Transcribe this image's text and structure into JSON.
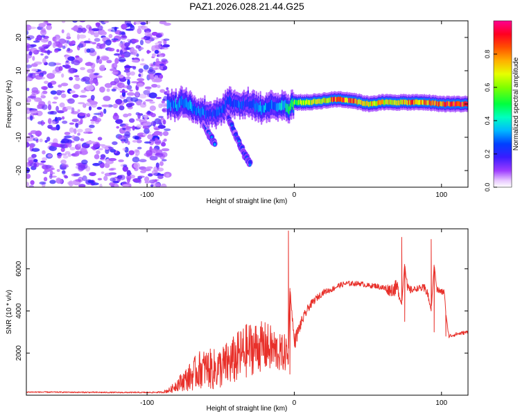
{
  "title": "PAZ1.2026.028.21.44.G25",
  "colors": {
    "snr_line": "#e8302a",
    "axis": "#000000",
    "background": "#ffffff"
  },
  "chart_data": [
    {
      "type": "heatmap",
      "title": "PAZ1.2026.028.21.44.G25",
      "xlabel": "Height of straight line (km)",
      "ylabel": "Frequency (Hz)",
      "xlim": [
        -182,
        118
      ],
      "ylim": [
        -25,
        25
      ],
      "xticks": [
        -100,
        0,
        100
      ],
      "xtick_labels": [
        "-100",
        "0",
        "100"
      ],
      "yticks": [
        -20,
        -10,
        0,
        10,
        20
      ],
      "ytick_labels": [
        "-20",
        "-10",
        "0",
        "10",
        "20"
      ],
      "noise_region_x": [
        -182,
        -86
      ],
      "ridge": {
        "description": "dominant frequency ridge",
        "x": [
          -86,
          -80,
          -74,
          -68,
          -62,
          -56,
          -50,
          -44,
          -38,
          -32,
          -26,
          -20,
          -14,
          -8,
          -4,
          0,
          10,
          20,
          30,
          40,
          50,
          60,
          70,
          80,
          90,
          100,
          110,
          118
        ],
        "y": [
          0.0,
          -0.5,
          1.0,
          -1.5,
          -2.5,
          -3.0,
          -2.0,
          1.0,
          -0.5,
          0.5,
          -1.0,
          -1.5,
          -0.5,
          0.0,
          -1.5,
          0.5,
          0.5,
          1.0,
          1.5,
          1.0,
          0.0,
          0.5,
          0.5,
          0.5,
          0.5,
          0.0,
          0.0,
          0.0
        ],
        "amplitude": [
          0.3,
          0.35,
          0.3,
          0.35,
          0.3,
          0.25,
          0.3,
          0.25,
          0.3,
          0.25,
          0.3,
          0.35,
          0.3,
          0.4,
          0.5,
          0.6,
          0.65,
          0.7,
          0.95,
          0.85,
          0.75,
          0.8,
          0.7,
          0.85,
          0.8,
          0.9,
          0.95,
          0.9
        ]
      },
      "branches": [
        {
          "x": [
            -66,
            -62,
            -58,
            -54
          ],
          "y": [
            -2,
            -5,
            -9,
            -12
          ]
        },
        {
          "x": [
            -46,
            -42,
            -38,
            -34,
            -30
          ],
          "y": [
            -3,
            -7,
            -11,
            -15,
            -18
          ]
        }
      ],
      "colorbar": {
        "label": "Normalized spectral amplitude",
        "range": [
          0,
          1
        ],
        "ticks": [
          0.0,
          0.2,
          0.4,
          0.6,
          0.8
        ],
        "tick_labels": [
          "0.0",
          "0.2",
          "0.4",
          "0.6",
          "0.8"
        ]
      }
    },
    {
      "type": "line",
      "xlabel": "Height of straight line (km)",
      "ylabel": "SNR (10 * v/v)",
      "xlim": [
        -182,
        118
      ],
      "ylim": [
        0,
        7900
      ],
      "xticks": [
        -100,
        0,
        100
      ],
      "xtick_labels": [
        "-100",
        "0",
        "100"
      ],
      "yticks": [
        2000,
        4000,
        6000
      ],
      "ytick_labels": [
        "2000",
        "4000",
        "6000"
      ],
      "series": [
        {
          "name": "SNR",
          "description": "envelope-sampled SNR with jitter",
          "x": [
            -182,
            -150,
            -120,
            -100,
            -90,
            -84,
            -80,
            -75,
            -70,
            -65,
            -60,
            -55,
            -50,
            -45,
            -40,
            -35,
            -30,
            -25,
            -20,
            -15,
            -10,
            -5,
            -4,
            -3,
            0,
            5,
            10,
            15,
            20,
            25,
            30,
            35,
            40,
            45,
            50,
            55,
            60,
            65,
            70,
            73,
            75,
            77,
            80,
            85,
            90,
            93,
            95,
            97,
            100,
            102,
            103,
            105,
            110,
            118
          ],
          "y": [
            150,
            140,
            130,
            130,
            140,
            250,
            500,
            700,
            900,
            1200,
            1300,
            1200,
            1300,
            1500,
            1700,
            2000,
            2200,
            2300,
            2300,
            2200,
            2000,
            2000,
            7800,
            1000,
            2500,
            3500,
            4200,
            4600,
            4900,
            5000,
            5200,
            5300,
            5300,
            5300,
            5200,
            5200,
            5100,
            5000,
            5100,
            7500,
            3500,
            5000,
            5000,
            5100,
            5000,
            7400,
            3000,
            5000,
            4900,
            4900,
            2800,
            2800,
            2900,
            3000
          ],
          "jitter": [
            30,
            30,
            30,
            30,
            40,
            150,
            300,
            500,
            700,
            900,
            900,
            1000,
            1000,
            1100,
            1200,
            1300,
            1300,
            1200,
            1200,
            1100,
            900,
            900,
            0,
            0,
            400,
            250,
            200,
            160,
            140,
            130,
            130,
            130,
            120,
            120,
            120,
            120,
            150,
            300,
            400,
            0,
            0,
            300,
            150,
            130,
            300,
            0,
            0,
            200,
            150,
            150,
            0,
            100,
            90,
            90
          ]
        }
      ]
    }
  ]
}
